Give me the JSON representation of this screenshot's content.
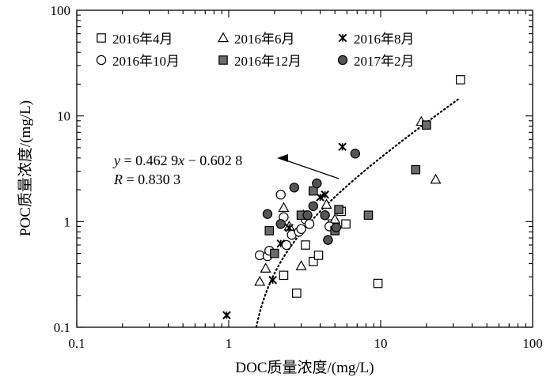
{
  "chart_data": {
    "type": "scatter",
    "xlabel": "DOC质量浓度/(mg/L)",
    "ylabel": "POC质量浓度/(mg/L)",
    "xscale": "log",
    "yscale": "log",
    "xlim": [
      0.1,
      100
    ],
    "ylim": [
      0.1,
      100
    ],
    "x_ticks": [
      "0.1",
      "1",
      "10",
      "100"
    ],
    "y_ticks": [
      "0.1",
      "1",
      "10",
      "100"
    ],
    "grid": false,
    "legend_position": "top-left",
    "series": [
      {
        "name": "2016年4月",
        "marker": "square-open",
        "points": [
          [
            2.3,
            0.31
          ],
          [
            2.8,
            0.21
          ],
          [
            3.2,
            0.6
          ],
          [
            3.6,
            0.42
          ],
          [
            3.9,
            0.48
          ],
          [
            4.8,
            0.95
          ],
          [
            5.5,
            1.25
          ],
          [
            5.9,
            0.95
          ],
          [
            9.6,
            0.26
          ],
          [
            33.5,
            22.0
          ]
        ]
      },
      {
        "name": "2016年6月",
        "marker": "triangle-open",
        "points": [
          [
            1.6,
            0.27
          ],
          [
            1.75,
            0.36
          ],
          [
            2.5,
            0.9
          ],
          [
            3.0,
            0.38
          ],
          [
            3.1,
            1.15
          ],
          [
            4.4,
            1.45
          ],
          [
            5.0,
            1.05
          ],
          [
            18.5,
            8.8
          ],
          [
            23.0,
            2.5
          ],
          [
            2.3,
            1.35
          ]
        ]
      },
      {
        "name": "2016年8月",
        "marker": "asterisk",
        "points": [
          [
            0.97,
            0.13
          ],
          [
            1.95,
            0.28
          ],
          [
            2.2,
            0.62
          ],
          [
            2.5,
            0.87
          ],
          [
            4.0,
            1.7
          ],
          [
            4.3,
            1.8
          ],
          [
            5.6,
            5.1
          ]
        ]
      },
      {
        "name": "2016年10月",
        "marker": "circle-open",
        "points": [
          [
            1.6,
            0.48
          ],
          [
            1.8,
            0.47
          ],
          [
            1.85,
            0.53
          ],
          [
            2.2,
            1.8
          ],
          [
            2.4,
            0.6
          ],
          [
            2.6,
            0.75
          ],
          [
            2.9,
            0.8
          ],
          [
            3.0,
            0.85
          ],
          [
            3.2,
            1.05
          ],
          [
            3.4,
            0.95
          ],
          [
            4.6,
            0.9
          ],
          [
            2.3,
            1.1
          ]
        ]
      },
      {
        "name": "2016年12月",
        "marker": "square-filled",
        "points": [
          [
            1.85,
            0.82
          ],
          [
            2.0,
            0.5
          ],
          [
            3.0,
            1.15
          ],
          [
            3.6,
            1.95
          ],
          [
            5.0,
            0.82
          ],
          [
            5.3,
            1.3
          ],
          [
            8.3,
            1.15
          ],
          [
            17.0,
            3.1
          ],
          [
            20.0,
            8.2
          ]
        ]
      },
      {
        "name": "2017年2月",
        "marker": "circle-filled",
        "points": [
          [
            1.8,
            1.18
          ],
          [
            2.2,
            0.95
          ],
          [
            2.7,
            2.1
          ],
          [
            3.3,
            1.15
          ],
          [
            3.6,
            1.4
          ],
          [
            3.8,
            2.3
          ],
          [
            4.3,
            1.15
          ],
          [
            4.5,
            0.67
          ],
          [
            5.1,
            0.88
          ],
          [
            6.8,
            4.4
          ]
        ]
      }
    ],
    "trendline": {
      "style": "dotted",
      "slope": 0.4629,
      "intercept": -0.6028,
      "x_range": [
        1.52,
        33.0
      ]
    },
    "annotation": {
      "line1_var": "y",
      "line1_rest": " = 0.462 9",
      "line1_var2": "x",
      "line1_tail": " − 0.602 8",
      "line2_var": "R",
      "line2_rest": " = 0.830 3",
      "arrow_target": [
        5.3,
        2.55
      ]
    }
  }
}
